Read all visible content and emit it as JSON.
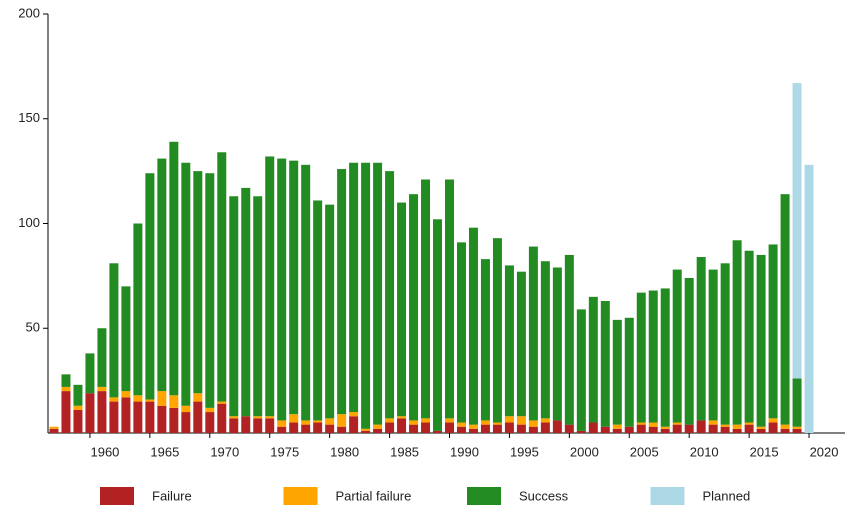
{
  "chart_data": {
    "type": "stacked_bar",
    "x": [
      1957,
      1958,
      1959,
      1960,
      1961,
      1962,
      1963,
      1964,
      1965,
      1966,
      1967,
      1968,
      1969,
      1970,
      1971,
      1972,
      1973,
      1974,
      1975,
      1976,
      1977,
      1978,
      1979,
      1980,
      1981,
      1982,
      1983,
      1984,
      1985,
      1986,
      1987,
      1988,
      1989,
      1990,
      1991,
      1992,
      1993,
      1994,
      1995,
      1996,
      1997,
      1998,
      1999,
      2000,
      2001,
      2002,
      2003,
      2004,
      2005,
      2006,
      2007,
      2008,
      2009,
      2010,
      2011,
      2012,
      2013,
      2014,
      2015,
      2016,
      2017,
      2018,
      2019,
      2020
    ],
    "series": [
      {
        "name": "Failure",
        "color": "#b22222",
        "values": [
          2,
          20,
          11,
          19,
          20,
          15,
          17,
          15,
          15,
          13,
          12,
          10,
          15,
          10,
          14,
          7,
          8,
          7,
          7,
          3,
          5,
          4,
          5,
          4,
          3,
          8,
          1,
          2,
          5,
          7,
          4,
          5,
          1,
          5,
          3,
          2,
          4,
          4,
          5,
          4,
          3,
          5,
          6,
          4,
          1,
          5,
          3,
          2,
          3,
          4,
          3,
          2,
          4,
          4,
          6,
          4,
          3,
          2,
          4,
          2,
          5,
          2,
          2,
          0
        ]
      },
      {
        "name": "Partial failure",
        "color": "#ffa500",
        "values": [
          1,
          2,
          2,
          0,
          2,
          2,
          3,
          3,
          1,
          7,
          6,
          3,
          4,
          2,
          1,
          1,
          0,
          1,
          1,
          3,
          4,
          2,
          1,
          3,
          6,
          2,
          1,
          2,
          2,
          1,
          2,
          2,
          0,
          2,
          2,
          2,
          2,
          1,
          3,
          4,
          3,
          2,
          0,
          0,
          0,
          0,
          0,
          2,
          0,
          1,
          2,
          1,
          1,
          0,
          0,
          2,
          1,
          2,
          1,
          1,
          2,
          2,
          1,
          0
        ]
      },
      {
        "name": "Success",
        "color": "#228b22",
        "values": [
          0,
          6,
          10,
          19,
          28,
          64,
          50,
          82,
          108,
          111,
          121,
          116,
          106,
          112,
          119,
          105,
          109,
          105,
          124,
          125,
          121,
          122,
          105,
          102,
          117,
          119,
          127,
          125,
          118,
          102,
          108,
          114,
          101,
          114,
          86,
          94,
          77,
          88,
          72,
          69,
          83,
          75,
          73,
          81,
          58,
          60,
          60,
          50,
          52,
          62,
          63,
          66,
          73,
          70,
          78,
          72,
          77,
          88,
          82,
          82,
          83,
          110,
          23,
          0
        ]
      },
      {
        "name": "Planned",
        "color": "#add8e6",
        "values": [
          0,
          0,
          0,
          0,
          0,
          0,
          0,
          0,
          0,
          0,
          0,
          0,
          0,
          0,
          0,
          0,
          0,
          0,
          0,
          0,
          0,
          0,
          0,
          0,
          0,
          0,
          0,
          0,
          0,
          0,
          0,
          0,
          0,
          0,
          0,
          0,
          0,
          0,
          0,
          0,
          0,
          0,
          0,
          0,
          0,
          0,
          0,
          0,
          0,
          0,
          0,
          0,
          0,
          0,
          0,
          0,
          0,
          0,
          0,
          0,
          0,
          0,
          141,
          128
        ]
      }
    ],
    "xlim": [
      1956.5,
      2023
    ],
    "xticks": [
      1960,
      1965,
      1970,
      1975,
      1980,
      1985,
      1990,
      1995,
      2000,
      2005,
      2010,
      2015,
      2020
    ],
    "ylim": [
      0,
      200
    ],
    "yticks": [
      50,
      100,
      150,
      200
    ],
    "legend": "bottom"
  }
}
